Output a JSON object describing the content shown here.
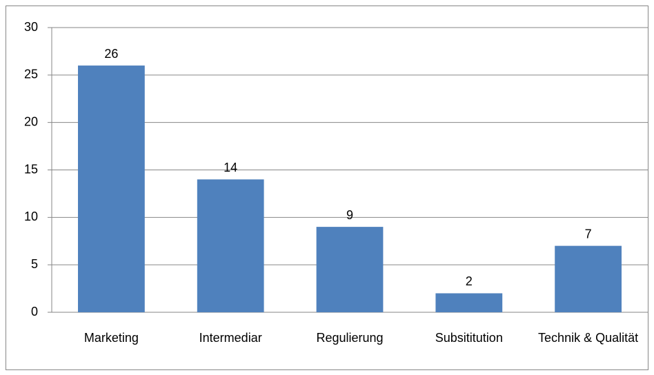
{
  "chart_data": {
    "type": "bar",
    "categories": [
      "Marketing",
      "Intermediar",
      "Regulierung",
      "Subsititution",
      "Technik & Qualität"
    ],
    "values": [
      26,
      14,
      9,
      2,
      7
    ],
    "color": "#4f81bd",
    "ylim": [
      0,
      30
    ],
    "yticks": [
      0,
      5,
      10,
      15,
      20,
      25,
      30
    ],
    "grid": true
  }
}
